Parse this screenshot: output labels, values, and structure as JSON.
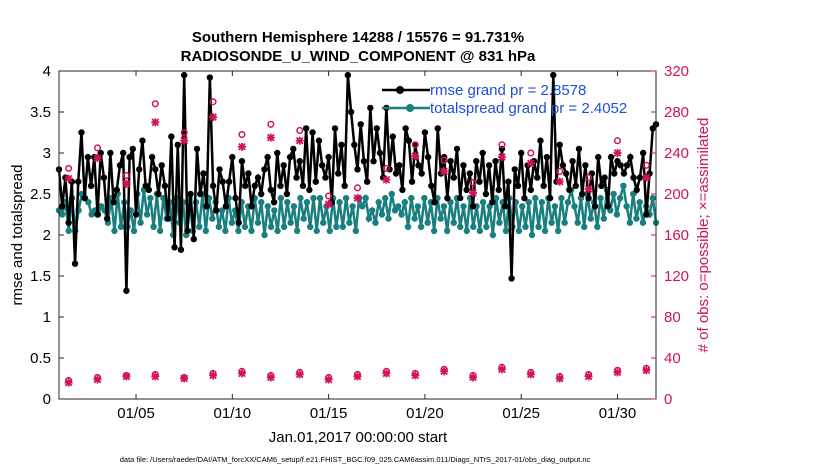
{
  "chart_data": {
    "type": "line",
    "title": "Southern Hemisphere 14288 / 15576 = 91.731%",
    "subtitle": "RADIOSONDE_U_WIND_COMPONENT @ 831 hPa",
    "xlabel": "Jan.01,2017 00:00:00 start",
    "ylabel_left": "rmse and totalspread",
    "ylabel_right": "# of obs: o=possible; ×=assimilated",
    "footnote": "data file: /Users/raeder/DAI/ATM_forcXX/CAM6_setup/f.e21.FHIST_BGC.f09_025.CAM6assim.011/Diags_NTrS_2017-01/obs_diag_output.nc",
    "xlim": [
      1.0,
      32.0
    ],
    "ylim_left": [
      0,
      4
    ],
    "ylim_right": [
      0,
      320
    ],
    "xticks": [
      5,
      10,
      15,
      20,
      25,
      30
    ],
    "xtick_labels": [
      "01/05",
      "01/10",
      "01/15",
      "01/20",
      "01/25",
      "01/30"
    ],
    "yticks_left": [
      0,
      0.5,
      1,
      1.5,
      2,
      2.5,
      3,
      3.5,
      4
    ],
    "ytick_labels_left": [
      "0",
      "0.5",
      "1",
      "1.5",
      "2",
      "2.5",
      "3",
      "3.5",
      "4"
    ],
    "yticks_right": [
      0,
      40,
      80,
      120,
      160,
      200,
      240,
      280,
      320
    ],
    "ytick_labels_right": [
      "0",
      "40",
      "80",
      "120",
      "160",
      "200",
      "240",
      "280",
      "320"
    ],
    "colors": {
      "rmse": "#000000",
      "spread": "#1a7f7f",
      "obs": "#d0135b",
      "legend_text": "#1f4fd6"
    },
    "legend": [
      {
        "key": "rmse",
        "label": "rmse grand pr = 2.8578"
      },
      {
        "key": "spread",
        "label": "totalspread grand pr = 2.4052"
      }
    ],
    "series": [
      {
        "name": "rmse",
        "axis": "left",
        "values": [
          2.8,
          2.35,
          2.7,
          2.15,
          2.65,
          1.65,
          2.65,
          3.25,
          2.45,
          2.95,
          2.6,
          2.95,
          2.25,
          3.0,
          2.7,
          2.2,
          3.0,
          2.4,
          2.55,
          2.85,
          3.0,
          1.32,
          2.95,
          3.05,
          2.25,
          2.8,
          3.15,
          2.6,
          2.55,
          2.95,
          2.8,
          2.5,
          2.85,
          2.6,
          2.2,
          3.2,
          1.85,
          3.1,
          1.82,
          3.95,
          2.05,
          2.5,
          1.95,
          3.05,
          2.5,
          2.75,
          2.35,
          3.92,
          2.6,
          2.3,
          2.8,
          2.65,
          2.35,
          2.65,
          2.95,
          2.45,
          2.15,
          2.9,
          2.6,
          2.75,
          2.35,
          2.6,
          2.7,
          2.5,
          2.8,
          2.95,
          2.55,
          2.4,
          3.0,
          2.6,
          2.85,
          2.5,
          2.95,
          3.05,
          2.7,
          2.9,
          2.6,
          3.3,
          2.55,
          3.25,
          2.65,
          3.15,
          2.85,
          2.7,
          2.95,
          2.4,
          3.3,
          2.75,
          3.1,
          2.6,
          3.95,
          3.5,
          3.1,
          2.8,
          3.35,
          2.9,
          2.65,
          3.55,
          2.9,
          3.3,
          3.0,
          2.7,
          3.55,
          2.8,
          3.2,
          2.75,
          2.85,
          2.55,
          3.3,
          3.15,
          2.65,
          3.1,
          2.85,
          2.75,
          3.25,
          2.95,
          2.6,
          2.4,
          3.3,
          2.75,
          2.95,
          2.45,
          2.9,
          2.7,
          3.05,
          2.45,
          2.85,
          2.55,
          2.75,
          2.35,
          2.9,
          2.65,
          3.0,
          2.5,
          2.85,
          2.4,
          2.9,
          2.55,
          3.05,
          2.35,
          2.65,
          1.47,
          2.8,
          2.6,
          3.0,
          2.45,
          2.85,
          2.55,
          2.9,
          2.7,
          3.15,
          2.6,
          2.95,
          2.45,
          3.95,
          2.65,
          3.1,
          2.85,
          2.75,
          2.55,
          2.9,
          2.6,
          3.05,
          2.5,
          2.85,
          2.45,
          2.75,
          2.35,
          2.95,
          2.6,
          2.7,
          2.35,
          2.95,
          2.75,
          2.9,
          2.85,
          2.75,
          2.85,
          2.95,
          2.7,
          2.55,
          2.7,
          3.0,
          2.25,
          2.75,
          3.3,
          3.35
        ]
      },
      {
        "name": "totalspread",
        "axis": "left",
        "values": [
          2.3,
          2.25,
          2.4,
          2.05,
          2.45,
          2.05,
          2.3,
          2.5,
          2.45,
          2.4,
          2.25,
          2.3,
          2.25,
          2.35,
          2.3,
          2.15,
          2.45,
          2.05,
          2.5,
          2.1,
          2.4,
          2.1,
          2.3,
          2.05,
          2.5,
          2.15,
          2.55,
          2.25,
          2.45,
          2.1,
          2.5,
          2.05,
          2.45,
          2.2,
          2.4,
          2.0,
          2.45,
          2.15,
          2.4,
          2.0,
          2.45,
          2.05,
          2.4,
          2.1,
          2.5,
          2.05,
          2.45,
          2.2,
          2.4,
          2.1,
          2.3,
          2.05,
          2.45,
          2.15,
          2.3,
          2.05,
          2.4,
          2.1,
          2.35,
          2.05,
          2.45,
          2.15,
          2.4,
          2.0,
          2.35,
          2.1,
          2.3,
          2.05,
          2.45,
          2.1,
          2.4,
          2.15,
          2.35,
          2.05,
          2.45,
          2.2,
          2.4,
          2.1,
          2.45,
          2.05,
          2.45,
          2.15,
          2.35,
          2.05,
          2.45,
          2.1,
          2.4,
          2.1,
          2.45,
          2.15,
          2.35,
          2.05,
          2.45,
          2.35,
          2.45,
          2.2,
          2.3,
          2.15,
          2.4,
          2.25,
          2.45,
          2.2,
          2.5,
          2.3,
          2.35,
          2.25,
          2.4,
          2.1,
          2.45,
          2.2,
          2.35,
          2.1,
          2.45,
          2.15,
          2.4,
          2.05,
          2.45,
          2.2,
          2.35,
          2.05,
          2.4,
          2.15,
          2.45,
          2.1,
          2.35,
          2.05,
          2.45,
          2.1,
          2.35,
          2.05,
          2.4,
          2.1,
          2.35,
          2.0,
          2.45,
          2.15,
          2.4,
          2.05,
          2.45,
          2.1,
          2.4,
          2.05,
          2.35,
          2.1,
          2.4,
          2.0,
          2.45,
          2.1,
          2.4,
          2.05,
          2.45,
          2.15,
          2.35,
          2.05,
          2.45,
          2.15,
          2.4,
          2.55,
          2.35,
          2.15,
          2.45,
          2.1,
          2.5,
          2.2,
          2.4,
          2.1,
          2.45,
          2.2,
          2.55,
          2.3,
          2.5,
          2.25,
          2.45,
          2.6,
          2.35,
          2.15,
          2.5,
          2.2,
          2.4,
          2.15,
          2.35,
          2.25,
          2.45,
          2.15
        ]
      },
      {
        "name": "obs possible",
        "axis": "right",
        "points": [
          [
            1.5,
            225
          ],
          [
            3.0,
            245
          ],
          [
            4.5,
            218
          ],
          [
            6.0,
            288
          ],
          [
            7.5,
            260
          ],
          [
            9.0,
            290
          ],
          [
            10.5,
            258
          ],
          [
            12.0,
            268
          ],
          [
            13.5,
            262
          ],
          [
            15.0,
            198
          ],
          [
            16.5,
            206
          ],
          [
            18.0,
            225
          ],
          [
            19.5,
            248
          ],
          [
            21.0,
            233
          ],
          [
            22.5,
            211
          ],
          [
            24.0,
            248
          ],
          [
            25.5,
            240
          ],
          [
            27.0,
            222
          ],
          [
            28.5,
            216
          ],
          [
            30.0,
            252
          ],
          [
            31.5,
            228
          ]
        ]
      },
      {
        "name": "obs assimilated",
        "axis": "right",
        "points": [
          [
            1.5,
            215
          ],
          [
            3.0,
            235
          ],
          [
            4.5,
            210
          ],
          [
            6.0,
            270
          ],
          [
            7.5,
            252
          ],
          [
            9.0,
            275
          ],
          [
            10.5,
            246
          ],
          [
            12.0,
            255
          ],
          [
            13.5,
            252
          ],
          [
            15.0,
            190
          ],
          [
            16.5,
            196
          ],
          [
            18.0,
            214
          ],
          [
            19.5,
            237
          ],
          [
            21.0,
            222
          ],
          [
            22.5,
            201
          ],
          [
            24.0,
            236
          ],
          [
            25.5,
            230
          ],
          [
            27.0,
            212
          ],
          [
            28.5,
            205
          ],
          [
            30.0,
            240
          ],
          [
            31.5,
            216
          ]
        ]
      },
      {
        "name": "obs possible (low)",
        "axis": "right",
        "points": [
          [
            1.5,
            18
          ],
          [
            3.0,
            21
          ],
          [
            4.5,
            23
          ],
          [
            6.0,
            24
          ],
          [
            7.5,
            21
          ],
          [
            9.0,
            25
          ],
          [
            10.5,
            27
          ],
          [
            12.0,
            23
          ],
          [
            13.5,
            26
          ],
          [
            15.0,
            21
          ],
          [
            16.5,
            24
          ],
          [
            18.0,
            27
          ],
          [
            19.5,
            25
          ],
          [
            21.0,
            29
          ],
          [
            22.5,
            23
          ],
          [
            24.0,
            31
          ],
          [
            25.5,
            26
          ],
          [
            27.0,
            22
          ],
          [
            28.5,
            24
          ],
          [
            30.0,
            28
          ],
          [
            31.5,
            30
          ]
        ]
      },
      {
        "name": "obs assimilated (low)",
        "axis": "right",
        "points": [
          [
            1.5,
            16
          ],
          [
            3.0,
            19
          ],
          [
            4.5,
            22
          ],
          [
            6.0,
            22
          ],
          [
            7.5,
            20
          ],
          [
            9.0,
            23
          ],
          [
            10.5,
            25
          ],
          [
            12.0,
            21
          ],
          [
            13.5,
            24
          ],
          [
            15.0,
            19
          ],
          [
            16.5,
            22
          ],
          [
            18.0,
            25
          ],
          [
            19.5,
            23
          ],
          [
            21.0,
            27
          ],
          [
            22.5,
            21
          ],
          [
            24.0,
            29
          ],
          [
            25.5,
            24
          ],
          [
            27.0,
            20
          ],
          [
            28.5,
            22
          ],
          [
            30.0,
            26
          ],
          [
            31.5,
            28
          ]
        ]
      }
    ]
  }
}
